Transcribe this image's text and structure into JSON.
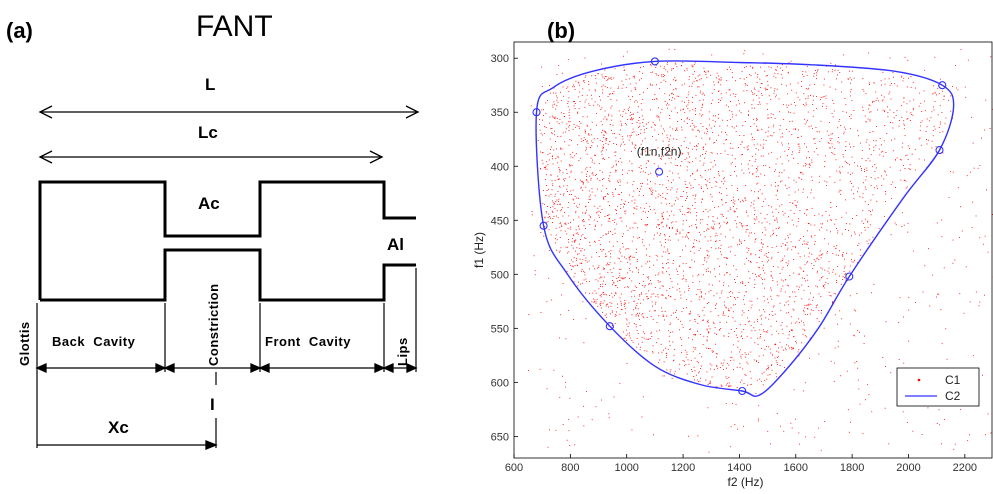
{
  "panel_a": {
    "label": "(a)",
    "title": "FANT",
    "L": "L",
    "Lc": "Lc",
    "Ac": "Ac",
    "Al": "Al",
    "Xc": "Xc",
    "I": "I",
    "segments": {
      "glottis": "Glottis",
      "back": "Back  Cavity",
      "constriction": "Constriction",
      "front": "Front  Cavity",
      "lips": "Lips"
    }
  },
  "panel_b": {
    "label": "(b)"
  },
  "chart_data": {
    "type": "scatter",
    "xlabel": "f2 (Hz)",
    "ylabel": "f1 (Hz)",
    "xlim": [
      600,
      2300
    ],
    "ylim": [
      670,
      285
    ],
    "xticks": [
      600,
      800,
      1000,
      1200,
      1400,
      1600,
      1800,
      2000,
      2200
    ],
    "yticks": [
      300,
      350,
      400,
      450,
      500,
      550,
      600,
      650
    ],
    "annotation": {
      "text": "(f1n,f2n)",
      "x": 1115,
      "y": 405
    },
    "legend": {
      "position": "bottom-right",
      "entries": [
        "C1",
        "C2"
      ]
    },
    "colors": {
      "C1": "#ff0000",
      "C2": "#3333ff"
    },
    "series": [
      {
        "name": "C1",
        "kind": "points",
        "approx_count": 4000,
        "x_range": [
          650,
          2300
        ],
        "y_range": [
          290,
          665
        ]
      },
      {
        "name": "C2",
        "kind": "closed-curve",
        "points": [
          [
            680,
            350
          ],
          [
            705,
            455
          ],
          [
            790,
            500
          ],
          [
            940,
            548
          ],
          [
            1100,
            585
          ],
          [
            1260,
            602
          ],
          [
            1410,
            608
          ],
          [
            1470,
            612
          ],
          [
            1560,
            590
          ],
          [
            1680,
            550
          ],
          [
            1790,
            502
          ],
          [
            1980,
            430
          ],
          [
            2110,
            385
          ],
          [
            2160,
            345
          ],
          [
            2120,
            325
          ],
          [
            1950,
            312
          ],
          [
            1650,
            306
          ],
          [
            1400,
            304
          ],
          [
            1100,
            303
          ],
          [
            880,
            312
          ],
          [
            740,
            327
          ]
        ],
        "markers": [
          [
            1100,
            303
          ],
          [
            2120,
            325
          ],
          [
            680,
            350
          ],
          [
            2110,
            385
          ],
          [
            1115,
            405
          ],
          [
            705,
            455
          ],
          [
            1790,
            502
          ],
          [
            940,
            548
          ],
          [
            1410,
            608
          ]
        ]
      }
    ]
  }
}
